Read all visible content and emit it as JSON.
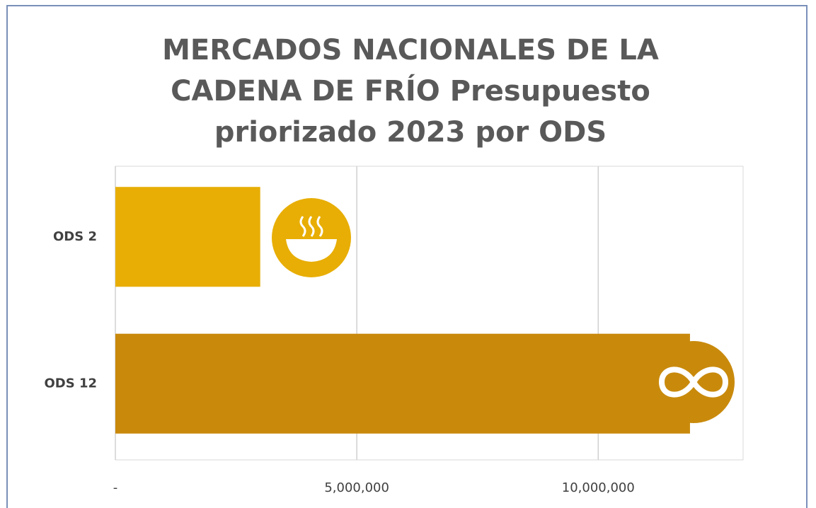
{
  "chart_data": {
    "type": "barh",
    "title": "MERCADOS NACIONALES DE LA CADENA DE FRÍO Presupuesto priorizado 2023 por ODS",
    "categories": [
      "ODS 2",
      "ODS 12"
    ],
    "values": [
      3000000,
      11900000
    ],
    "colors": [
      "#e8ae05",
      "#c98a0c"
    ],
    "xlim": [
      0,
      13000000
    ],
    "xticks": [
      {
        "value": 0,
        "label": "-"
      },
      {
        "value": 5000000,
        "label": "5,000,000"
      },
      {
        "value": 10000000,
        "label": "10,000,000"
      }
    ],
    "grid": true
  }
}
